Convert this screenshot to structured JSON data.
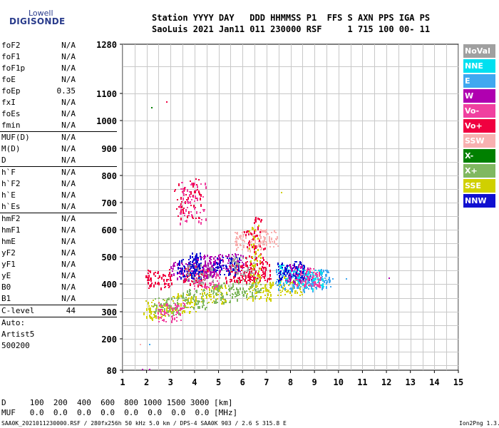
{
  "logo": {
    "top": "Lowell",
    "bottom": "DIGISONDE"
  },
  "header": {
    "line1": "Station YYYY DAY   DDD HHMMSS P1  FFS S AXN PPS IGA PS",
    "line2": "SaoLuis 2021 Jan11 011 230000 RSF     1 715 100 00- 11"
  },
  "params": [
    {
      "group": [
        {
          "label": "foF2",
          "value": "N/A"
        },
        {
          "label": "foF1",
          "value": "N/A"
        },
        {
          "label": "foF1p",
          "value": "N/A"
        },
        {
          "label": "foE",
          "value": "N/A"
        },
        {
          "label": "foEp",
          "value": "0.35"
        },
        {
          "label": "fxI",
          "value": "N/A"
        },
        {
          "label": "foEs",
          "value": "N/A"
        },
        {
          "label": "fmin",
          "value": "N/A"
        }
      ]
    },
    {
      "group": [
        {
          "label": "MUF(D)",
          "value": "N/A"
        },
        {
          "label": "M(D)",
          "value": "N/A"
        },
        {
          "label": "D",
          "value": "N/A"
        }
      ]
    },
    {
      "group": [
        {
          "label": "h`F",
          "value": "N/A"
        },
        {
          "label": "h`F2",
          "value": "N/A"
        },
        {
          "label": "h`E",
          "value": "N/A"
        },
        {
          "label": "h`Es",
          "value": "N/A"
        }
      ]
    },
    {
      "group": [
        {
          "label": "hmF2",
          "value": "N/A"
        },
        {
          "label": "hmF1",
          "value": "N/A"
        },
        {
          "label": "hmE",
          "value": "N/A"
        },
        {
          "label": "yF2",
          "value": "N/A"
        },
        {
          "label": "yF1",
          "value": "N/A"
        },
        {
          "label": "yE",
          "value": "N/A"
        },
        {
          "label": "B0",
          "value": "N/A"
        },
        {
          "label": "B1",
          "value": "N/A"
        }
      ]
    },
    {
      "group": [
        {
          "label": "C-level",
          "value": "44"
        }
      ]
    }
  ],
  "auto": {
    "line1": "Auto:",
    "line2": "Artist5",
    "line3": "500200"
  },
  "legend": [
    {
      "label": "NoVal",
      "color": "#a0a0a0"
    },
    {
      "label": "NNE",
      "color": "#00e0f0"
    },
    {
      "label": "E",
      "color": "#40a8f0"
    },
    {
      "label": "W",
      "color": "#b000b0"
    },
    {
      "label": "Vo-",
      "color": "#f040a0"
    },
    {
      "label": "Vo+",
      "color": "#f00040"
    },
    {
      "label": "SSW",
      "color": "#f8b0b0"
    },
    {
      "label": "X-",
      "color": "#008000"
    },
    {
      "label": "X+",
      "color": "#80b860"
    },
    {
      "label": "SSE",
      "color": "#d0d000"
    },
    {
      "label": "NNW",
      "color": "#1010d0"
    }
  ],
  "bottom": {
    "line1": "D     100  200  400  600  800 1000 1500 3000 [km]",
    "line2": "MUF   0.0  0.0  0.0  0.0  0.0  0.0  0.0  0.0 [MHz]"
  },
  "footer": {
    "left": "SAA0K_2021011230000.RSF / 280fx256h 50 kHz 5.0 km / DPS-4 SAA0K 903 / 2.6 S 315.8 E",
    "right": "Ion2Png 1.3.17"
  },
  "chart_data": {
    "type": "scatter",
    "x_ticks": [
      "1",
      "2",
      "3",
      "4",
      "5",
      "6",
      "7",
      "8",
      "9",
      "10",
      "11",
      "12",
      "13",
      "14",
      "15"
    ],
    "y_ticks": [
      "80",
      "200",
      "300",
      "400",
      "500",
      "600",
      "700",
      "800",
      "900",
      "1000",
      "1100",
      "1280"
    ],
    "xlim": [
      1,
      15
    ],
    "y_scale": "nonlinear (compressed above 900 km)",
    "grid": true,
    "series": [
      {
        "name": "SSE",
        "clusters": [
          [
            2.4,
            310
          ],
          [
            3.5,
            335
          ],
          [
            4.8,
            365
          ],
          [
            6.7,
            380
          ],
          [
            8.0,
            395
          ]
        ]
      },
      {
        "name": "X+",
        "clusters": [
          [
            2.8,
            320
          ],
          [
            4.0,
            350
          ],
          [
            5.2,
            370
          ],
          [
            6.2,
            390
          ]
        ]
      },
      {
        "name": "E",
        "clusters": [
          [
            7.9,
            420
          ],
          [
            8.5,
            410
          ],
          [
            9.2,
            420
          ]
        ]
      },
      {
        "name": "NNE",
        "clusters": [
          [
            8.0,
            440
          ],
          [
            8.8,
            420
          ]
        ]
      },
      {
        "name": "W",
        "clusters": [
          [
            3.5,
            450
          ],
          [
            4.5,
            470
          ],
          [
            5.5,
            480
          ],
          [
            8.3,
            440
          ]
        ]
      },
      {
        "name": "Vo+",
        "clusters": [
          [
            2.5,
            420
          ],
          [
            4.0,
            430
          ],
          [
            5.8,
            440
          ],
          [
            6.6,
            450
          ],
          [
            3.7,
            720
          ]
        ]
      },
      {
        "name": "Vo-",
        "clusters": [
          [
            3.0,
            300
          ],
          [
            4.5,
            420
          ],
          [
            8.7,
            430
          ],
          [
            3.9,
            700
          ]
        ]
      },
      {
        "name": "NNW",
        "clusters": [
          [
            3.8,
            460
          ],
          [
            5.3,
            470
          ],
          [
            8.0,
            450
          ]
        ]
      },
      {
        "name": "SSW",
        "clusters": [
          [
            6.2,
            560
          ],
          [
            6.9,
            570
          ]
        ]
      },
      {
        "name": "NoVal",
        "clusters": [
          [
            4.2,
            440
          ],
          [
            6.0,
            470
          ]
        ]
      }
    ]
  }
}
